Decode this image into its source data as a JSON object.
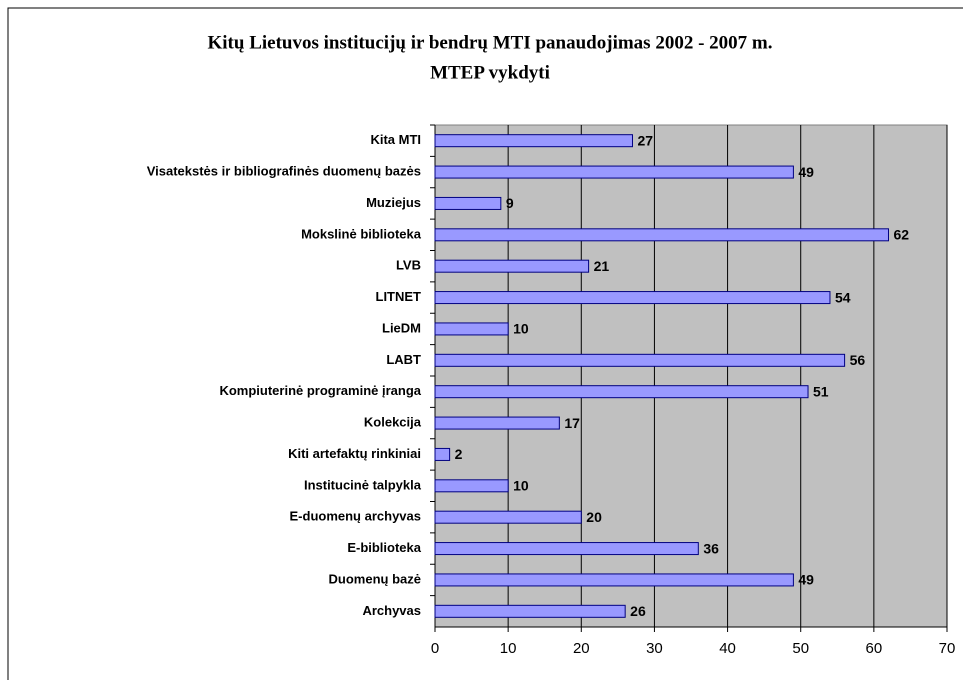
{
  "chart_data": {
    "type": "bar",
    "orientation": "horizontal",
    "title": "Kitų Lietuvos institucijų ir bendrų MTI panaudojimas 2002 - 2007 m.",
    "subtitle": "MTEP vykdyti",
    "categories": [
      "Kita MTI",
      "Visatekstės ir bibliografinės duomenų bazės",
      "Muziejus",
      "Mokslinė biblioteka",
      "LVB",
      "LITNET",
      "LieDM",
      "LABT",
      "Kompiuterinė programinė įranga",
      "Kolekcija",
      "Kiti artefaktų rinkiniai",
      "Institucinė talpykla",
      "E-duomenų archyvas",
      "E-biblioteka",
      "Duomenų bazė",
      "Archyvas"
    ],
    "values": [
      27,
      49,
      9,
      62,
      21,
      54,
      10,
      56,
      51,
      17,
      2,
      10,
      20,
      36,
      49,
      26
    ],
    "color": "#9999ff",
    "xlim": [
      0,
      70
    ],
    "xticks": [
      0,
      10,
      20,
      30,
      40,
      50,
      60,
      70
    ],
    "grid": true
  }
}
